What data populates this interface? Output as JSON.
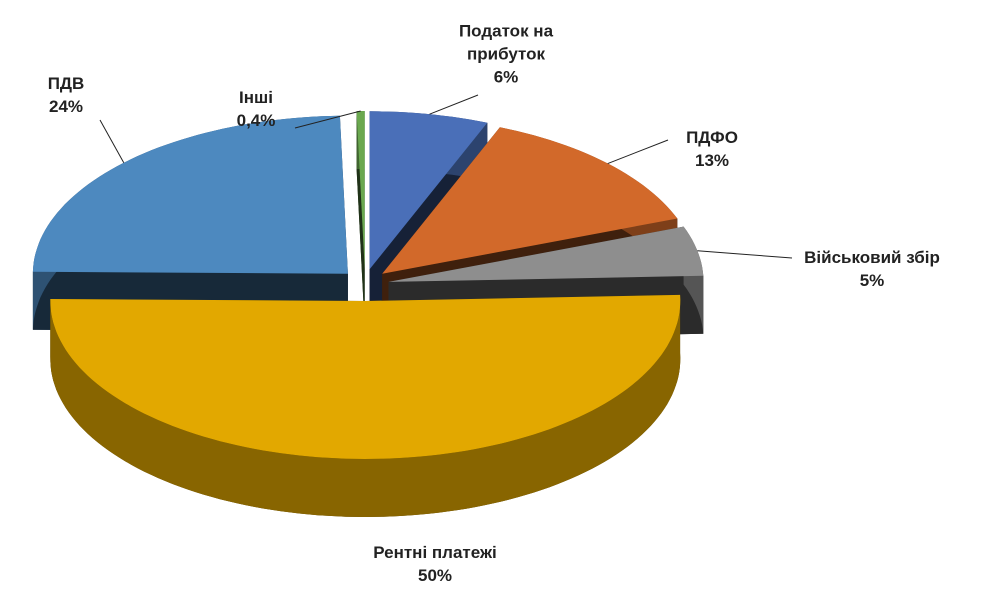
{
  "chart_data": {
    "type": "pie3d",
    "categories": [
      "Податок на прибуток",
      "ПДФО",
      "Військовий збір",
      "Рентні платежі",
      "ПДВ",
      "Інші"
    ],
    "values": [
      6,
      13,
      5,
      50,
      24,
      0.4
    ],
    "value_labels": [
      "6%",
      "13%",
      "5%",
      "50%",
      "24%",
      "0,4%"
    ],
    "colors": [
      "#4a6fb8",
      "#d2692a",
      "#8e8e8e",
      "#e2a800",
      "#4d89bf",
      "#6aa84f"
    ]
  }
}
